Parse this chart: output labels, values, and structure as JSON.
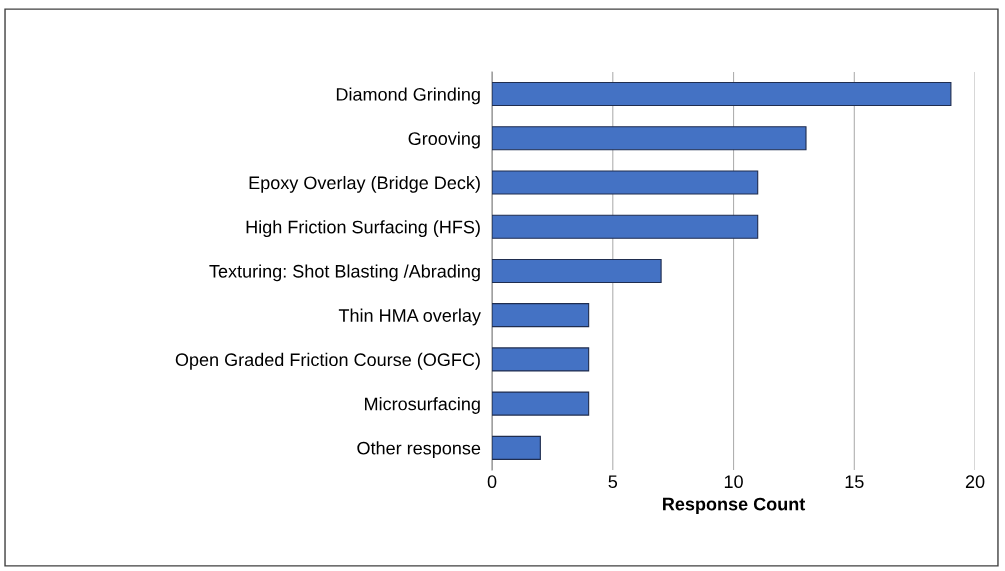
{
  "chart_data": {
    "type": "bar",
    "orientation": "horizontal",
    "xlabel": "Response Count",
    "categories": [
      "Diamond Grinding",
      "Grooving",
      "Epoxy Overlay (Bridge Deck)",
      "High Friction Surfacing (HFS)",
      "Texturing: Shot Blasting /Abrading",
      "Thin HMA overlay",
      "Open Graded Friction Course (OGFC)",
      "Microsurfacing",
      "Other response"
    ],
    "values": [
      19,
      13,
      11,
      11,
      7,
      4,
      4,
      4,
      2
    ],
    "color": "#4472c4",
    "xlim": [
      0,
      20
    ],
    "xticks": [
      0,
      5,
      10,
      15,
      20
    ],
    "grid": "x",
    "legend": false
  }
}
